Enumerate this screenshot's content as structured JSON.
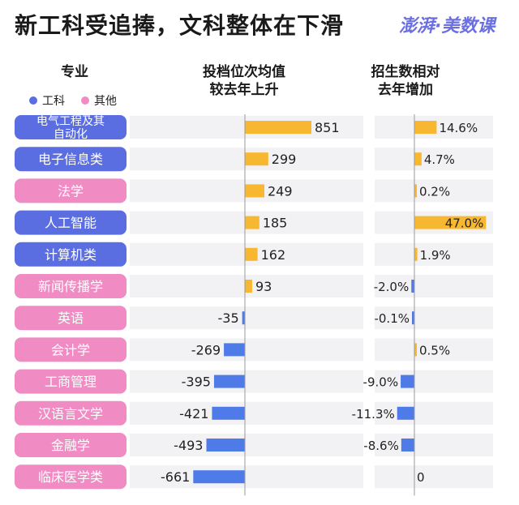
{
  "title": "新工科受追捧，文科整体在下滑",
  "logo": "澎湃·美数课",
  "headers": {
    "major": "专业",
    "rank_line1": "投档位次均值",
    "rank_line2": "较去年上升",
    "enroll_line1": "招生数相对",
    "enroll_line2": "去年增加"
  },
  "legend": [
    {
      "label": "工科",
      "color": "#5b6ee1"
    },
    {
      "label": "其他",
      "color": "#f08bc4"
    }
  ],
  "colors": {
    "engineering": "#5b6ee1",
    "other": "#f08bc4",
    "positive_bar": "#f7b731",
    "negative_bar": "#4f7be8",
    "row_band": "#f2f2f4"
  },
  "chart_data": [
    {
      "type": "bar",
      "title": "投档位次均值较去年上升",
      "categories": [
        "电气工程及其自动化",
        "电子信息类",
        "法学",
        "人工智能",
        "计算机类",
        "新闻传播学",
        "英语",
        "会计学",
        "工商管理",
        "汉语言文学",
        "金融学",
        "临床医学类"
      ],
      "values": [
        851,
        299,
        249,
        185,
        162,
        93,
        -35,
        -269,
        -395,
        -421,
        -493,
        -661
      ],
      "labels": [
        "851",
        "299",
        "249",
        "185",
        "162",
        "93",
        "-35",
        "-269",
        "-395",
        "-421",
        "-493",
        "-661"
      ],
      "groups": [
        "工科",
        "工科",
        "其他",
        "工科",
        "工科",
        "其他",
        "其他",
        "其他",
        "其他",
        "其他",
        "其他",
        "其他"
      ]
    },
    {
      "type": "bar",
      "title": "招生数相对去年增加",
      "categories": [
        "电气工程及其自动化",
        "电子信息类",
        "法学",
        "人工智能",
        "计算机类",
        "新闻传播学",
        "英语",
        "会计学",
        "工商管理",
        "汉语言文学",
        "金融学",
        "临床医学类"
      ],
      "values": [
        14.6,
        4.7,
        0.2,
        47.0,
        1.9,
        -2.0,
        -0.1,
        0.5,
        -9.0,
        -11.3,
        -8.6,
        0
      ],
      "labels": [
        "14.6%",
        "4.7%",
        "0.2%",
        "47.0%",
        "1.9%",
        "-2.0%",
        "-0.1%",
        "0.5%",
        "-9.0%",
        "-11.3%",
        "-8.6%",
        "0"
      ]
    }
  ]
}
